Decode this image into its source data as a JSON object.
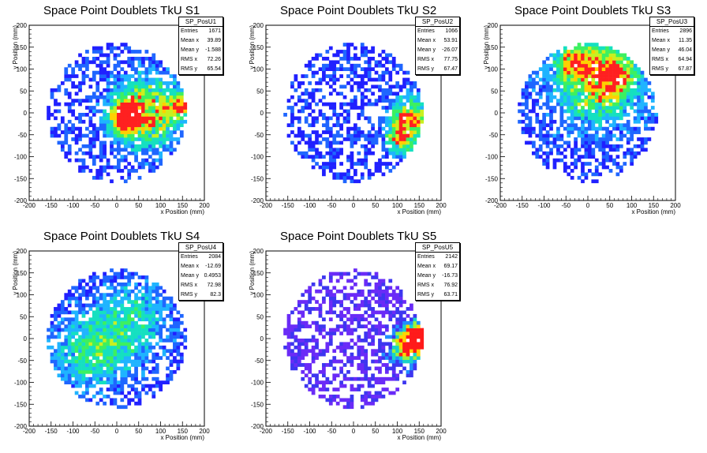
{
  "chart_data": [
    {
      "type": "heatmap",
      "title": "Space Point Doublets TkU S1",
      "xlabel": "x Position (mm)",
      "ylabel": "y Position (mm)",
      "xlim": [
        -200,
        200
      ],
      "ylim": [
        -200,
        200
      ],
      "ticks": [
        "-200",
        "-150",
        "-100",
        "-50",
        "0",
        "50",
        "100",
        "150",
        "200"
      ],
      "stats": {
        "name": "SP_PosU1",
        "rows": [
          {
            "label": "Entries",
            "value": "1671"
          },
          {
            "label": "Mean x",
            "value": "39.89"
          },
          {
            "label": "Mean y",
            "value": "-1.588"
          },
          {
            "label": "RMS x",
            "value": "72.26"
          },
          {
            "label": "RMS y",
            "value": "65.54"
          }
        ]
      },
      "hotspots": [
        {
          "x": 70,
          "y": 0,
          "s": 55,
          "w": 3.0
        },
        {
          "x": 20,
          "y": -10,
          "s": 25,
          "w": 3.5
        },
        {
          "x": 150,
          "y": 20,
          "s": 20,
          "w": 2.5
        }
      ]
    },
    {
      "type": "heatmap",
      "title": "Space Point Doublets TkU S2",
      "xlabel": "x Position (mm)",
      "ylabel": "y Position (mm)",
      "xlim": [
        -200,
        200
      ],
      "ylim": [
        -200,
        200
      ],
      "ticks": [
        "-200",
        "-150",
        "-100",
        "-50",
        "0",
        "50",
        "100",
        "150",
        "200"
      ],
      "stats": {
        "name": "SP_PosU2",
        "rows": [
          {
            "label": "Entries",
            "value": "1066"
          },
          {
            "label": "Mean x",
            "value": "53.91"
          },
          {
            "label": "Mean y",
            "value": "-26.07"
          },
          {
            "label": "RMS x",
            "value": "77.75"
          },
          {
            "label": "RMS y",
            "value": "67.47"
          }
        ]
      },
      "hotspots": [
        {
          "x": 130,
          "y": -10,
          "s": 30,
          "w": 3.5
        },
        {
          "x": 110,
          "y": -60,
          "s": 25,
          "w": 2.5
        }
      ]
    },
    {
      "type": "heatmap",
      "title": "Space Point Doublets TkU S3",
      "xlabel": "x Position (mm)",
      "ylabel": "y Position (mm)",
      "xlim": [
        -200,
        200
      ],
      "ylim": [
        -200,
        200
      ],
      "ticks": [
        "-200",
        "-150",
        "-100",
        "-50",
        "0",
        "50",
        "100",
        "150",
        "200"
      ],
      "stats": {
        "name": "SP_PosU3",
        "rows": [
          {
            "label": "Entries",
            "value": "2896"
          },
          {
            "label": "Mean x",
            "value": "11.35"
          },
          {
            "label": "Mean y",
            "value": "46.04"
          },
          {
            "label": "RMS x",
            "value": "64.94"
          },
          {
            "label": "RMS y",
            "value": "67.87"
          }
        ]
      },
      "hotspots": [
        {
          "x": 20,
          "y": 70,
          "s": 70,
          "w": 2.5
        },
        {
          "x": -30,
          "y": 120,
          "s": 30,
          "w": 2.0
        },
        {
          "x": 60,
          "y": 90,
          "s": 35,
          "w": 2.0
        }
      ]
    },
    {
      "type": "heatmap",
      "title": "Space Point Doublets TkU S4",
      "xlabel": "x Position (mm)",
      "ylabel": "y Position (mm)",
      "xlim": [
        -200,
        200
      ],
      "ylim": [
        -200,
        200
      ],
      "ticks": [
        "-200",
        "-150",
        "-100",
        "-50",
        "0",
        "50",
        "100",
        "150",
        "200"
      ],
      "stats": {
        "name": "SP_PosU4",
        "rows": [
          {
            "label": "Entries",
            "value": "2084"
          },
          {
            "label": "Mean x",
            "value": "-12.69"
          },
          {
            "label": "Mean y",
            "value": "0.4953"
          },
          {
            "label": "RMS x",
            "value": "72.98"
          },
          {
            "label": "RMS y",
            "value": "82.3"
          }
        ]
      },
      "hotspots": [
        {
          "x": -60,
          "y": -30,
          "s": 60,
          "w": 1.8
        },
        {
          "x": 40,
          "y": 40,
          "s": 60,
          "w": 1.4
        }
      ]
    },
    {
      "type": "heatmap",
      "title": "Space Point Doublets TkU S5",
      "xlabel": "x Position (mm)",
      "ylabel": "y Position (mm)",
      "xlim": [
        -200,
        200
      ],
      "ylim": [
        -200,
        200
      ],
      "ticks": [
        "-200",
        "-150",
        "-100",
        "-50",
        "0",
        "50",
        "100",
        "150",
        "200"
      ],
      "stats": {
        "name": "SP_PosU5",
        "rows": [
          {
            "label": "Entries",
            "value": "2142"
          },
          {
            "label": "Mean x",
            "value": "69.17"
          },
          {
            "label": "Mean y",
            "value": "-16.73"
          },
          {
            "label": "RMS x",
            "value": "76.92"
          },
          {
            "label": "RMS y",
            "value": "63.71"
          }
        ]
      },
      "hotspots": [
        {
          "x": 150,
          "y": 0,
          "s": 25,
          "w": 4.0
        },
        {
          "x": 120,
          "y": -20,
          "s": 30,
          "w": 2.5
        }
      ]
    }
  ]
}
